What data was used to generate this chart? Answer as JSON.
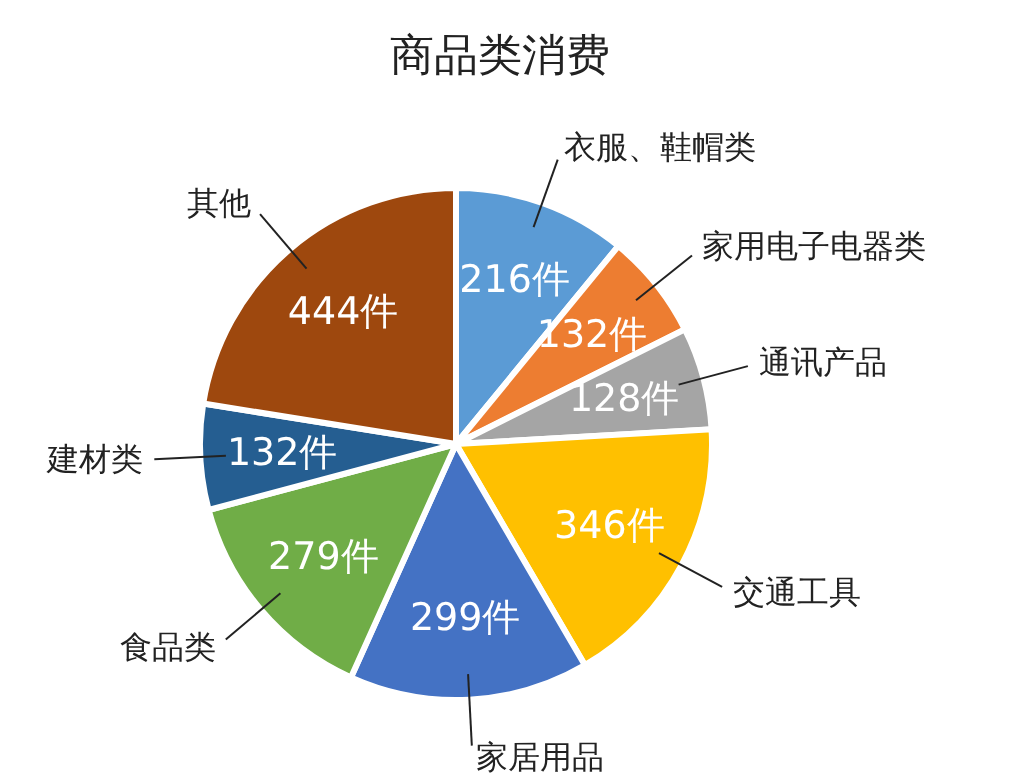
{
  "chart_data": {
    "type": "pie",
    "title": "商品类消费",
    "categories": [
      "衣服、鞋帽类",
      "家用电子电器类",
      "通讯产品",
      "交通工具",
      "家居用品",
      "食品类",
      "建材类",
      "其他"
    ],
    "values": [
      216,
      132,
      128,
      346,
      299,
      279,
      132,
      444
    ],
    "value_labels": [
      "216件",
      "132件",
      "128件",
      "346件",
      "299件",
      "279件",
      "132件",
      "444件"
    ],
    "colors": [
      "#5b9bd5",
      "#ed7d31",
      "#a5a5a5",
      "#ffc000",
      "#4472c4",
      "#70ad47",
      "#255e91",
      "#9e480e"
    ]
  }
}
